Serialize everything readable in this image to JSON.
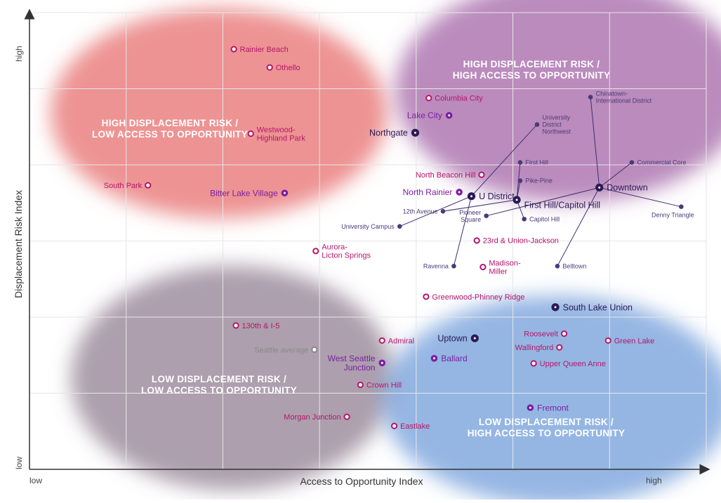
{
  "chart_data": {
    "type": "scatter",
    "title": "",
    "xlabel": "Access to Opportunity Index",
    "ylabel": "Displacement Risk Index",
    "x_tick_labels": {
      "low": "low",
      "high": "high"
    },
    "y_tick_labels": {
      "low": "low",
      "high": "high"
    },
    "xlim": [
      0,
      1
    ],
    "ylim": [
      0,
      1
    ],
    "grid": true,
    "quadrants": [
      {
        "key": "hdl",
        "line1": "HIGH DISPLACEMENT RISK /",
        "line2": "LOW ACCESS TO OPPORTUNITY",
        "color": "#e66a6a",
        "cx": 0.28,
        "cy": 0.78
      },
      {
        "key": "hdh",
        "line1": "HIGH DISPLACEMENT RISK /",
        "line2": "HIGH ACCESS TO OPPORTUNITY",
        "color": "#a160a4",
        "cx": 0.8,
        "cy": 0.83
      },
      {
        "key": "ldl",
        "line1": "LOW DISPLACEMENT RISK /",
        "line2": "LOW ACCESS TO OPPORTUNITY",
        "color": "#8d7a8d",
        "cx": 0.3,
        "cy": 0.2
      },
      {
        "key": "ldh",
        "line1": "LOW DISPLACEMENT RISK /",
        "line2": "HIGH ACCESS TO OPPORTUNITY",
        "color": "#6c9ad8",
        "cx": 0.78,
        "cy": 0.15
      }
    ],
    "hubs": [
      {
        "name": "Downtown",
        "x": 0.842,
        "y": 0.617
      },
      {
        "name": "First Hill/Capitol Hill",
        "x": 0.72,
        "y": 0.59
      },
      {
        "name": "U District",
        "x": 0.653,
        "y": 0.598
      }
    ],
    "points": [
      {
        "label": "Rainier Beach",
        "x": 0.302,
        "y": 0.92,
        "style": "hollow",
        "color": "#b5166b",
        "pos": "right"
      },
      {
        "label": "Othello",
        "x": 0.355,
        "y": 0.88,
        "style": "hollow",
        "color": "#b5166b",
        "pos": "right"
      },
      {
        "label": "Columbia City",
        "x": 0.59,
        "y": 0.813,
        "style": "hollow",
        "color": "#b5166b",
        "pos": "right"
      },
      {
        "label": "Westwood-|Highland Park",
        "x": 0.327,
        "y": 0.735,
        "style": "hollow",
        "color": "#b5166b",
        "pos": "right"
      },
      {
        "label": "South Park",
        "x": 0.175,
        "y": 0.622,
        "style": "hollow",
        "color": "#b5166b",
        "pos": "left"
      },
      {
        "label": "North Beacon Hill",
        "x": 0.668,
        "y": 0.645,
        "style": "hollow",
        "color": "#b5166b",
        "pos": "left"
      },
      {
        "label": "Aurora-|Licton Springs",
        "x": 0.423,
        "y": 0.478,
        "style": "hollow",
        "color": "#b5166b",
        "pos": "right"
      },
      {
        "label": "23rd & Union-Jackson",
        "x": 0.661,
        "y": 0.501,
        "style": "hollow",
        "color": "#b5166b",
        "pos": "right"
      },
      {
        "label": "Madison-|Miller",
        "x": 0.67,
        "y": 0.443,
        "style": "hollow",
        "color": "#b5166b",
        "pos": "right"
      },
      {
        "label": "Greenwood-Phinney Ridge",
        "x": 0.586,
        "y": 0.378,
        "style": "hollow",
        "color": "#b5166b",
        "pos": "right"
      },
      {
        "label": "130th & I-5",
        "x": 0.305,
        "y": 0.315,
        "style": "hollow",
        "color": "#b5166b",
        "pos": "right"
      },
      {
        "label": "Roosevelt",
        "x": 0.79,
        "y": 0.297,
        "style": "hollow",
        "color": "#b5166b",
        "pos": "left"
      },
      {
        "label": "Green Lake",
        "x": 0.855,
        "y": 0.282,
        "style": "hollow",
        "color": "#b5166b",
        "pos": "right"
      },
      {
        "label": "Wallingford",
        "x": 0.783,
        "y": 0.267,
        "style": "hollow",
        "color": "#b5166b",
        "pos": "left"
      },
      {
        "label": "Admiral",
        "x": 0.521,
        "y": 0.282,
        "style": "hollow",
        "color": "#b5166b",
        "pos": "right"
      },
      {
        "label": "Upper Queen Anne",
        "x": 0.745,
        "y": 0.232,
        "style": "hollow",
        "color": "#b5166b",
        "pos": "right"
      },
      {
        "label": "Crown Hill",
        "x": 0.489,
        "y": 0.185,
        "style": "hollow",
        "color": "#b5166b",
        "pos": "right"
      },
      {
        "label": "Morgan Junction",
        "x": 0.469,
        "y": 0.115,
        "style": "hollow",
        "color": "#b5166b",
        "pos": "left"
      },
      {
        "label": "Eastlake",
        "x": 0.539,
        "y": 0.095,
        "style": "hollow",
        "color": "#b5166b",
        "pos": "right"
      },
      {
        "label": "Seattle average",
        "x": 0.421,
        "y": 0.262,
        "style": "hollow",
        "color": "#8a8a8a",
        "pos": "left"
      },
      {
        "label": "Lake City",
        "x": 0.62,
        "y": 0.775,
        "style": "dot",
        "color": "#7b1fa2",
        "pos": "left",
        "size": "lg"
      },
      {
        "label": "North Rainier",
        "x": 0.635,
        "y": 0.607,
        "style": "dot",
        "color": "#7b1fa2",
        "pos": "left",
        "size": "lg"
      },
      {
        "label": "Bitter Lake Village",
        "x": 0.377,
        "y": 0.605,
        "style": "dot",
        "color": "#7b1fa2",
        "pos": "left",
        "size": "lg"
      },
      {
        "label": "West Seattle|Junction",
        "x": 0.521,
        "y": 0.233,
        "style": "dot",
        "color": "#7b1fa2",
        "pos": "left",
        "size": "lg"
      },
      {
        "label": "Ballard",
        "x": 0.598,
        "y": 0.243,
        "style": "dot",
        "color": "#7b1fa2",
        "pos": "right",
        "size": "lg"
      },
      {
        "label": "Fremont",
        "x": 0.74,
        "y": 0.135,
        "style": "dot",
        "color": "#7b1fa2",
        "pos": "right",
        "size": "lg"
      },
      {
        "label": "Northgate",
        "x": 0.57,
        "y": 0.737,
        "style": "dot",
        "color": "#2a1a55",
        "pos": "left",
        "size": "xl"
      },
      {
        "label": "U District",
        "x": 0.653,
        "y": 0.598,
        "style": "dot",
        "color": "#2a1a55",
        "pos": "right",
        "size": "xl"
      },
      {
        "label": "First Hill/Capitol Hill",
        "x": 0.72,
        "y": 0.59,
        "style": "dot",
        "color": "#2a1a55",
        "pos": "rightlow",
        "size": "xl"
      },
      {
        "label": "Downtown",
        "x": 0.842,
        "y": 0.617,
        "style": "dot",
        "color": "#2a1a55",
        "pos": "right",
        "size": "xl"
      },
      {
        "label": "South Lake Union",
        "x": 0.777,
        "y": 0.355,
        "style": "dot",
        "color": "#2a1a55",
        "pos": "right",
        "size": "xl"
      },
      {
        "label": "Uptown",
        "x": 0.658,
        "y": 0.287,
        "style": "dot",
        "color": "#2a1a55",
        "pos": "left",
        "size": "xl"
      },
      {
        "label": "University|District|Northwest",
        "x": 0.75,
        "y": 0.755,
        "style": "small",
        "color": "#4a3a78",
        "pos": "right",
        "hub": "U District"
      },
      {
        "label": "First Hill",
        "x": 0.725,
        "y": 0.672,
        "style": "small",
        "color": "#4a3a78",
        "pos": "right",
        "hub": "First Hill/Capitol Hill"
      },
      {
        "label": "Pike-Pine",
        "x": 0.725,
        "y": 0.632,
        "style": "small",
        "color": "#4a3a78",
        "pos": "right",
        "hub": "First Hill/Capitol Hill"
      },
      {
        "label": "12th Avenue",
        "x": 0.611,
        "y": 0.565,
        "style": "small",
        "color": "#4a3a78",
        "pos": "left",
        "hub": "First Hill/Capitol Hill"
      },
      {
        "label": "Pioneer|Square",
        "x": 0.675,
        "y": 0.555,
        "style": "small",
        "color": "#4a3a78",
        "pos": "left",
        "hub": "Downtown"
      },
      {
        "label": "Capitol Hill",
        "x": 0.731,
        "y": 0.548,
        "style": "small",
        "color": "#4a3a78",
        "pos": "right",
        "hub": "First Hill/Capitol Hill"
      },
      {
        "label": "University Campus",
        "x": 0.547,
        "y": 0.532,
        "style": "small",
        "color": "#4a3a78",
        "pos": "left",
        "hub": "U District"
      },
      {
        "label": "Ravenna",
        "x": 0.627,
        "y": 0.445,
        "style": "small",
        "color": "#4a3a78",
        "pos": "left",
        "hub": "U District"
      },
      {
        "label": "Belltown",
        "x": 0.78,
        "y": 0.445,
        "style": "small",
        "color": "#4a3a78",
        "pos": "right",
        "hub": "Downtown"
      },
      {
        "label": "Chinatown-|International District",
        "x": 0.829,
        "y": 0.815,
        "style": "small",
        "color": "#4a3a78",
        "pos": "right",
        "hub": "Downtown"
      },
      {
        "label": "Commercial Core",
        "x": 0.89,
        "y": 0.672,
        "style": "small",
        "color": "#4a3a78",
        "pos": "right",
        "hub": "Downtown"
      },
      {
        "label": "Denny Triangle",
        "x": 0.963,
        "y": 0.575,
        "style": "small",
        "color": "#4a3a78",
        "pos": "below",
        "hub": "Downtown"
      }
    ]
  }
}
